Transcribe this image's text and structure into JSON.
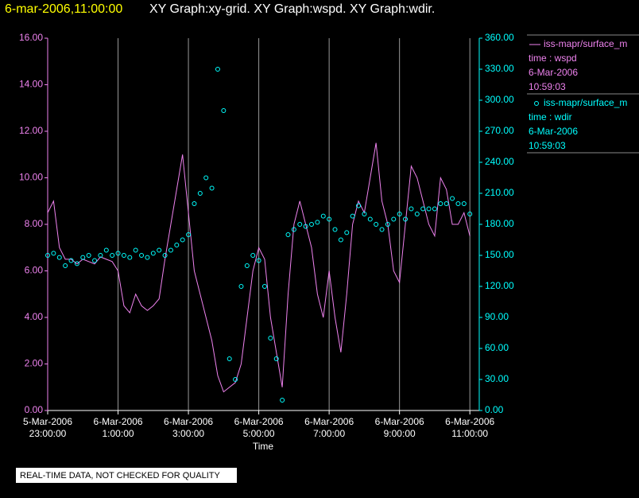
{
  "chart_data": {
    "type": "line-scatter",
    "title": "6-mar-2006,11:00:00",
    "subtitle": "XY Graph:xy-grid.  XY Graph:wspd.  XY Graph:wdir.",
    "x_label": "Time",
    "note": "REAL-TIME DATA, NOT CHECKED FOR QUALITY",
    "grid": true,
    "xlim": [
      "2006-03-05T23:00",
      "2006-03-06T11:16"
    ],
    "xticks": [
      {
        "value": "2006-03-05T23:00",
        "label": [
          "5-Mar-2006",
          "23:00:00"
        ]
      },
      {
        "value": "2006-03-06T01:00",
        "label": [
          "6-Mar-2006",
          "1:00:00"
        ]
      },
      {
        "value": "2006-03-06T03:00",
        "label": [
          "6-Mar-2006",
          "3:00:00"
        ]
      },
      {
        "value": "2006-03-06T05:00",
        "label": [
          "6-Mar-2006",
          "5:00:00"
        ]
      },
      {
        "value": "2006-03-06T07:00",
        "label": [
          "6-Mar-2006",
          "7:00:00"
        ]
      },
      {
        "value": "2006-03-06T09:00",
        "label": [
          "6-Mar-2006",
          "9:00:00"
        ]
      },
      {
        "value": "2006-03-06T11:00",
        "label": [
          "6-Mar-2006",
          "11:00:00"
        ]
      }
    ],
    "ylim": [
      0,
      16
    ],
    "yticks": [
      {
        "value": 0,
        "label": "0.00"
      },
      {
        "value": 2,
        "label": "2.00"
      },
      {
        "value": 4,
        "label": "4.00"
      },
      {
        "value": 6,
        "label": "6.00"
      },
      {
        "value": 8,
        "label": "8.00"
      },
      {
        "value": 10,
        "label": "10.00"
      },
      {
        "value": 12,
        "label": "12.00"
      },
      {
        "value": 14,
        "label": "14.00"
      },
      {
        "value": 16,
        "label": "16.00"
      }
    ],
    "y2lim": [
      0,
      360
    ],
    "y2ticks": [
      {
        "value": 0,
        "label": "0.00"
      },
      {
        "value": 30,
        "label": "30.00"
      },
      {
        "value": 60,
        "label": "60.00"
      },
      {
        "value": 90,
        "label": "90.00"
      },
      {
        "value": 120,
        "label": "120.00"
      },
      {
        "value": 150,
        "label": "150.00"
      },
      {
        "value": 180,
        "label": "180.00"
      },
      {
        "value": 210,
        "label": "210.00"
      },
      {
        "value": 240,
        "label": "240.00"
      },
      {
        "value": 270,
        "label": "270.00"
      },
      {
        "value": 300,
        "label": "300.00"
      },
      {
        "value": 330,
        "label": "330.00"
      },
      {
        "value": 360,
        "label": "360.00"
      }
    ],
    "x": [
      "2006-03-05T23:00",
      "2006-03-05T23:10",
      "2006-03-05T23:20",
      "2006-03-05T23:30",
      "2006-03-05T23:40",
      "2006-03-05T23:50",
      "2006-03-06T00:00",
      "2006-03-06T00:10",
      "2006-03-06T00:20",
      "2006-03-06T00:30",
      "2006-03-06T00:40",
      "2006-03-06T00:50",
      "2006-03-06T01:00",
      "2006-03-06T01:10",
      "2006-03-06T01:20",
      "2006-03-06T01:30",
      "2006-03-06T01:40",
      "2006-03-06T01:50",
      "2006-03-06T02:00",
      "2006-03-06T02:10",
      "2006-03-06T02:20",
      "2006-03-06T02:30",
      "2006-03-06T02:40",
      "2006-03-06T02:50",
      "2006-03-06T03:00",
      "2006-03-06T03:10",
      "2006-03-06T03:20",
      "2006-03-06T03:30",
      "2006-03-06T03:40",
      "2006-03-06T03:50",
      "2006-03-06T04:00",
      "2006-03-06T04:10",
      "2006-03-06T04:20",
      "2006-03-06T04:30",
      "2006-03-06T04:40",
      "2006-03-06T04:50",
      "2006-03-06T05:00",
      "2006-03-06T05:10",
      "2006-03-06T05:20",
      "2006-03-06T05:30",
      "2006-03-06T05:40",
      "2006-03-06T05:50",
      "2006-03-06T06:00",
      "2006-03-06T06:10",
      "2006-03-06T06:20",
      "2006-03-06T06:30",
      "2006-03-06T06:40",
      "2006-03-06T06:50",
      "2006-03-06T07:00",
      "2006-03-06T07:10",
      "2006-03-06T07:20",
      "2006-03-06T07:30",
      "2006-03-06T07:40",
      "2006-03-06T07:50",
      "2006-03-06T08:00",
      "2006-03-06T08:10",
      "2006-03-06T08:20",
      "2006-03-06T08:30",
      "2006-03-06T08:40",
      "2006-03-06T08:50",
      "2006-03-06T09:00",
      "2006-03-06T09:10",
      "2006-03-06T09:20",
      "2006-03-06T09:30",
      "2006-03-06T09:40",
      "2006-03-06T09:50",
      "2006-03-06T10:00",
      "2006-03-06T10:10",
      "2006-03-06T10:20",
      "2006-03-06T10:30",
      "2006-03-06T10:40",
      "2006-03-06T10:50",
      "2006-03-06T11:00"
    ],
    "series": [
      {
        "name": "iss-mapr/surface_m",
        "legend_lines": [
          "time : wspd",
          "6-Mar-2006",
          "10:59:03"
        ],
        "color": "#ee82ee",
        "style": "line",
        "values": [
          8.5,
          9.0,
          7.0,
          6.5,
          6.5,
          6.3,
          6.5,
          6.4,
          6.3,
          6.6,
          6.5,
          6.4,
          6.0,
          4.5,
          4.2,
          5.0,
          4.5,
          4.3,
          4.5,
          4.8,
          6.5,
          8.0,
          9.5,
          11.0,
          8.5,
          6.0,
          5.0,
          4.0,
          3.0,
          1.5,
          0.8,
          1.0,
          1.2,
          2.0,
          4.0,
          6.0,
          7.0,
          6.5,
          4.0,
          2.5,
          1.0,
          5.0,
          8.0,
          9.0,
          8.0,
          7.0,
          5.0,
          4.0,
          6.0,
          4.0,
          2.5,
          5.0,
          8.0,
          9.0,
          8.5,
          10.0,
          11.5,
          9.0,
          8.0,
          6.0,
          5.5,
          8.0,
          10.5,
          10.0,
          9.0,
          8.0,
          7.5,
          10.0,
          9.5,
          8.0,
          8.0,
          8.5,
          7.5
        ]
      },
      {
        "name": "iss-mapr/surface_m",
        "legend_lines": [
          "time : wdir",
          "6-Mar-2006",
          "10:59:03"
        ],
        "color": "#00ffff",
        "style": "scatter",
        "axis": "y2",
        "values": [
          150,
          152,
          148,
          140,
          145,
          142,
          148,
          150,
          145,
          150,
          155,
          150,
          152,
          150,
          148,
          155,
          150,
          148,
          152,
          155,
          150,
          155,
          160,
          165,
          170,
          200,
          210,
          225,
          215,
          330,
          290,
          50,
          30,
          120,
          140,
          150,
          145,
          120,
          70,
          50,
          10,
          170,
          175,
          180,
          178,
          180,
          182,
          188,
          185,
          175,
          165,
          172,
          188,
          198,
          190,
          185,
          180,
          175,
          180,
          185,
          190,
          185,
          195,
          190,
          195,
          195,
          195,
          200,
          200,
          205,
          200,
          200,
          190
        ]
      }
    ]
  }
}
